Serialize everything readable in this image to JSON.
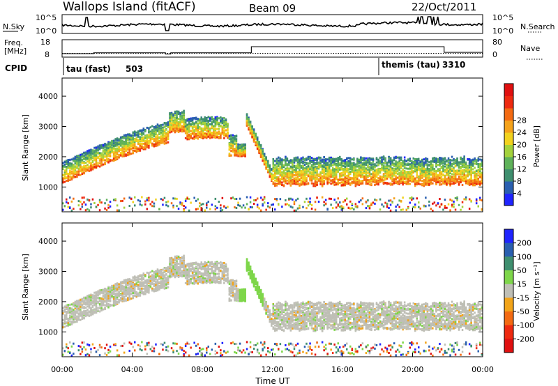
{
  "header": {
    "station": "Wallops Island (fitACF)",
    "beam": "Beam 09",
    "date": "22/Oct/2011"
  },
  "noise_panel": {
    "left_label": "N.Sky",
    "left_ticks": [
      "10^5",
      "10^0"
    ],
    "right_label": "N.Search",
    "right_ticks": [
      "10^5",
      "10^0"
    ]
  },
  "freq_panel": {
    "left_label_1": "Freq.",
    "left_label_2": "[MHz]",
    "left_ticks": [
      "18",
      "8"
    ],
    "right_label": "Nave",
    "right_ticks": [
      "80",
      "0"
    ]
  },
  "cpid_panel": {
    "label": "CPID",
    "modes": [
      {
        "name": "tau (fast)",
        "id": "503",
        "start_hour": 0
      },
      {
        "name": "themis (tau)",
        "id": "3310",
        "start_hour": 18
      }
    ]
  },
  "colors": {
    "power_scale": [
      "#1f24ff",
      "#2a5fb0",
      "#3f8f6f",
      "#5fb25a",
      "#a4d23c",
      "#f2d21e",
      "#f5a21a",
      "#f36a12",
      "#ee2a10",
      "#e01010"
    ],
    "velocity_scale": [
      "#1f24ff",
      "#2a5fb0",
      "#3f8f6f",
      "#7ed64a",
      "#bfbfb6",
      "#f2a419",
      "#f36a12",
      "#ee2a10",
      "#e01010"
    ]
  },
  "chart_data": [
    {
      "type": "heatmap",
      "name": "power",
      "ylabel": "Slant Range [km]",
      "xlabel": "",
      "x_range_hours": [
        0,
        24
      ],
      "ylim_km": [
        180,
        4600
      ],
      "ytick_labels": [
        "1000",
        "2000",
        "3000",
        "4000"
      ],
      "ytick_values": [
        1000,
        2000,
        3000,
        4000
      ],
      "colorbar": {
        "label": "Power [dB]",
        "tick_labels": [
          "4",
          "8",
          "12",
          "16",
          "20",
          "24",
          "28"
        ],
        "range": [
          0,
          32
        ]
      }
    },
    {
      "type": "heatmap",
      "name": "velocity",
      "ylabel": "Slant Range [km]",
      "xlabel": "Time UT",
      "x_range_hours": [
        0,
        24
      ],
      "xtick_labels": [
        "00:00",
        "04:00",
        "08:00",
        "12:00",
        "16:00",
        "20:00",
        "00:00"
      ],
      "ylim_km": [
        180,
        4600
      ],
      "ytick_labels": [
        "1000",
        "2000",
        "3000",
        "4000"
      ],
      "ytick_values": [
        1000,
        2000,
        3000,
        4000
      ],
      "colorbar": {
        "label": "Velocity [m s⁻¹]",
        "tick_labels": [
          "200",
          "100",
          "50",
          "15",
          "-15",
          "-50",
          "-100",
          "-200"
        ]
      }
    }
  ]
}
